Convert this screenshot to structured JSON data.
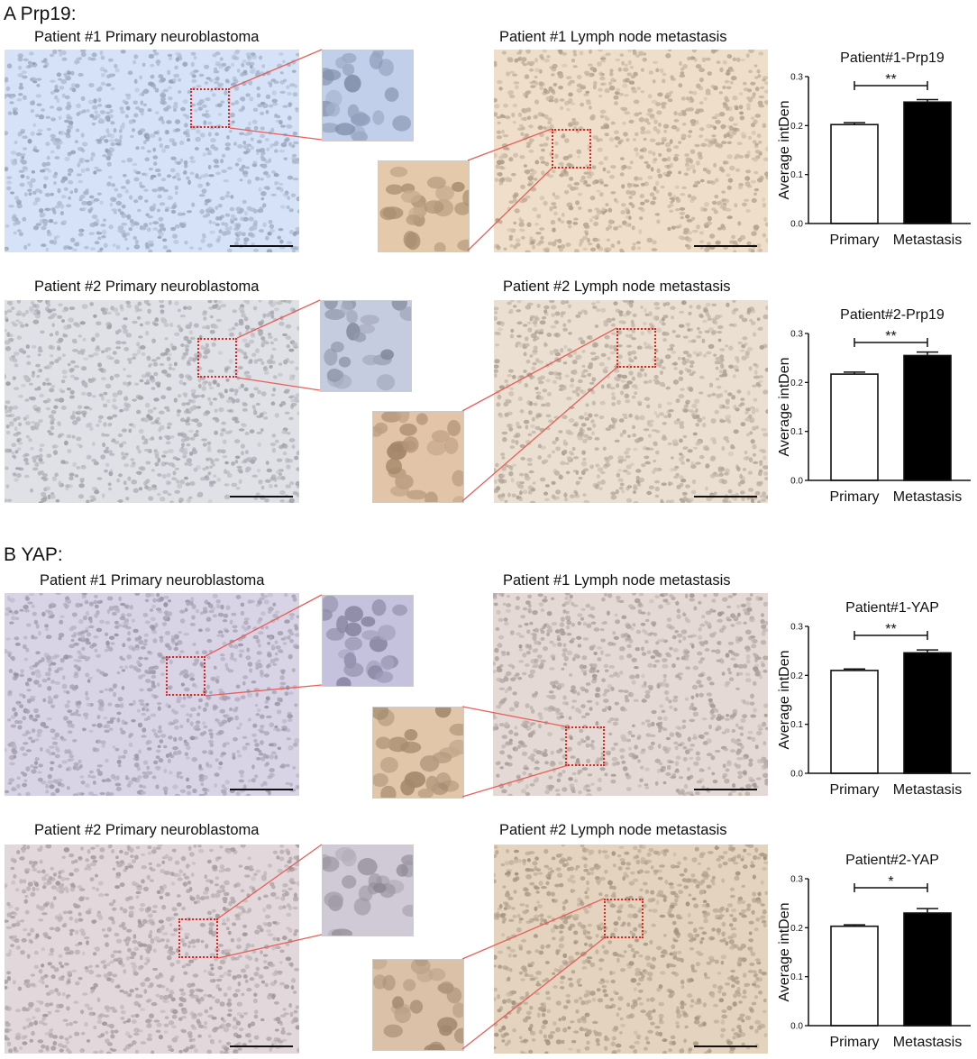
{
  "sections": [
    {
      "label": "A Prp19:",
      "rows": [
        {
          "primary_title": "Patient #1 Primary neuroblastoma",
          "metastasis_title": "Patient #1 Lymph node metastasis",
          "primary_tint": "#b9c6dc",
          "metastasis_tint": "#d2c2ae",
          "primary_zoom_tint": "#a6b3cf",
          "metastasis_zoom_tint": "#c8ad8f",
          "chart_data": {
            "type": "bar",
            "title": "Patient#1-Prp19",
            "ylabel": "Average intDen",
            "categories": [
              "Primary",
              "Metastasis"
            ],
            "values": [
              0.202,
              0.248
            ],
            "errors": [
              0.004,
              0.005
            ],
            "ylim": [
              0,
              0.3
            ],
            "yticks": [
              "0.0",
              "0.1",
              "0.2",
              "0.3"
            ],
            "significance": "**",
            "bar_fills": [
              "#ffffff",
              "#000000"
            ]
          }
        },
        {
          "primary_title": "Patient #2 Primary neuroblastoma",
          "metastasis_title": "Patient #2 Lymph node metastasis",
          "primary_tint": "#c4c4cb",
          "metastasis_tint": "#cfc3b6",
          "primary_zoom_tint": "#aab0c4",
          "metastasis_zoom_tint": "#c6a88c",
          "chart_data": {
            "type": "bar",
            "title": "Patient#2-Prp19",
            "ylabel": "Average intDen",
            "categories": [
              "Primary",
              "Metastasis"
            ],
            "values": [
              0.217,
              0.255
            ],
            "errors": [
              0.004,
              0.007
            ],
            "ylim": [
              0,
              0.3
            ],
            "yticks": [
              "0.0",
              "0.1",
              "0.2",
              "0.3"
            ],
            "significance": "**",
            "bar_fills": [
              "#ffffff",
              "#000000"
            ]
          }
        }
      ]
    },
    {
      "label": "B YAP:",
      "rows": [
        {
          "primary_title": "Patient #1 Primary neuroblastoma",
          "metastasis_title": "Patient #1 Lymph node metastasis",
          "primary_tint": "#bdb8c9",
          "metastasis_tint": "#c8bdb8",
          "primary_zoom_tint": "#a9a6c2",
          "metastasis_zoom_tint": "#c5aa8e",
          "chart_data": {
            "type": "bar",
            "title": "Patient#1-YAP",
            "ylabel": "Average intDen",
            "categories": [
              "Primary",
              "Metastasis"
            ],
            "values": [
              0.21,
              0.246
            ],
            "errors": [
              0.003,
              0.006
            ],
            "ylim": [
              0,
              0.3
            ],
            "yticks": [
              "0.0",
              "0.1",
              "0.2",
              "0.3"
            ],
            "significance": "**",
            "bar_fills": [
              "#ffffff",
              "#000000"
            ]
          }
        },
        {
          "primary_title": "Patient #2 Primary neuroblastoma",
          "metastasis_title": "Patient #2 Lymph node metastasis",
          "primary_tint": "#c6bcbf",
          "metastasis_tint": "#c7b7a3",
          "primary_zoom_tint": "#b3aeba",
          "metastasis_zoom_tint": "#bea58b",
          "chart_data": {
            "type": "bar",
            "title": "Patient#2-YAP",
            "ylabel": "Average intDen",
            "categories": [
              "Primary",
              "Metastasis"
            ],
            "values": [
              0.203,
              0.23
            ],
            "errors": [
              0.003,
              0.009
            ],
            "ylim": [
              0,
              0.3
            ],
            "yticks": [
              "0.0",
              "0.1",
              "0.2",
              "0.3"
            ],
            "significance": "*",
            "bar_fills": [
              "#ffffff",
              "#000000"
            ]
          }
        }
      ]
    }
  ],
  "colors": {
    "roi_box": "#e0251f",
    "connector_line": "#e8605a"
  }
}
